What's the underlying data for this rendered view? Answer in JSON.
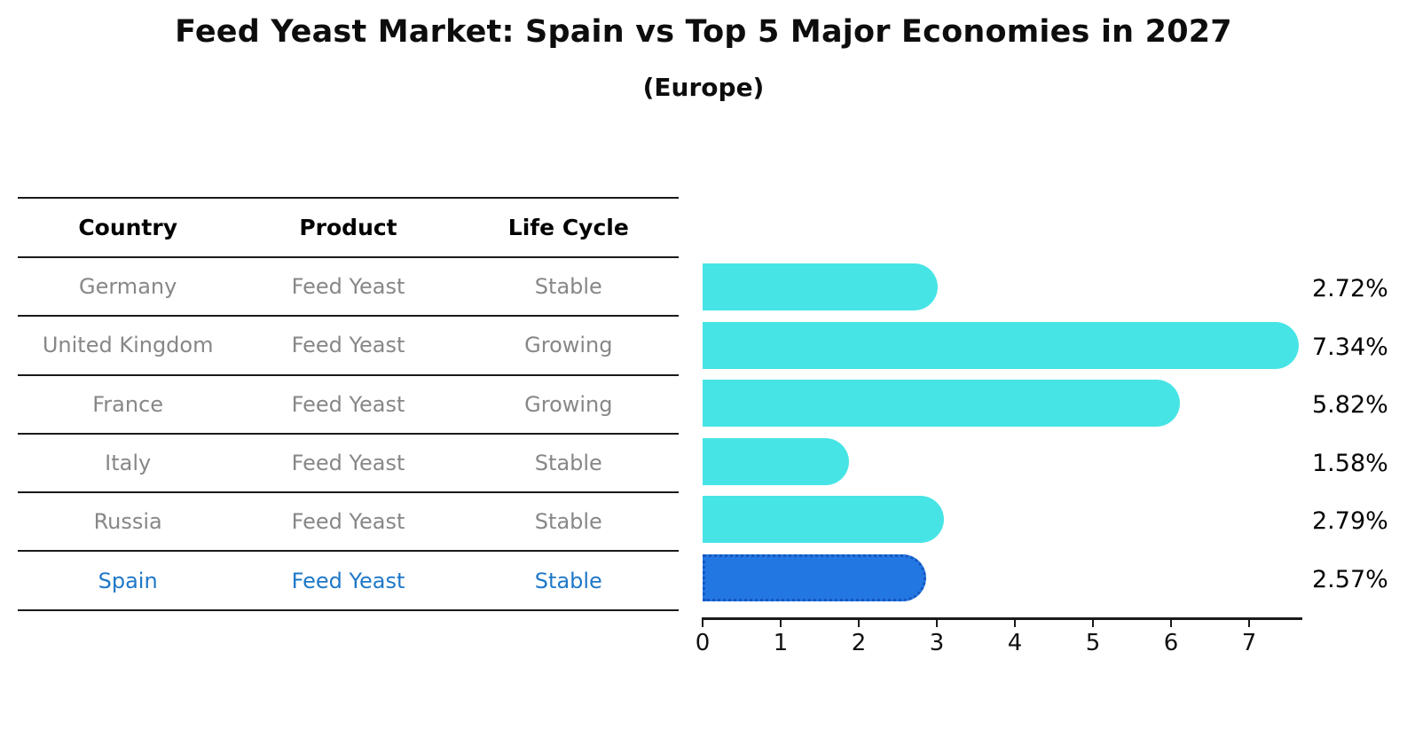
{
  "title": "Feed Yeast Market: Spain vs Top 5 Major Economies in 2027",
  "subtitle": "(Europe)",
  "table": {
    "headers": [
      "Country",
      "Product",
      "Life Cycle"
    ],
    "rows": [
      {
        "country": "Germany",
        "product": "Feed Yeast",
        "life_cycle": "Stable",
        "highlight": false
      },
      {
        "country": "United Kingdom",
        "product": "Feed Yeast",
        "life_cycle": "Growing",
        "highlight": false
      },
      {
        "country": "France",
        "product": "Feed Yeast",
        "life_cycle": "Growing",
        "highlight": false
      },
      {
        "country": "Italy",
        "product": "Feed Yeast",
        "life_cycle": "Stable",
        "highlight": false
      },
      {
        "country": "Russia",
        "product": "Feed Yeast",
        "life_cycle": "Stable",
        "highlight": true
      }
    ],
    "highlight_row": {
      "country": "Spain",
      "product": "Feed Yeast",
      "life_cycle": "Stable"
    }
  },
  "chart_data": {
    "type": "bar",
    "orientation": "horizontal",
    "categories": [
      "Germany",
      "United Kingdom",
      "France",
      "Italy",
      "Russia",
      "Spain"
    ],
    "values": [
      2.72,
      7.34,
      5.82,
      1.58,
      2.79,
      2.57
    ],
    "value_labels": [
      "2.72%",
      "7.34%",
      "5.82%",
      "1.58%",
      "2.79%",
      "2.57%"
    ],
    "xticks": [
      "0",
      "1",
      "2",
      "3",
      "4",
      "5",
      "6",
      "7"
    ],
    "xlim": [
      0,
      7.7
    ],
    "grid": false,
    "legend": false,
    "bar_color": "#47E4E6",
    "highlight_index": 5,
    "highlight_color": "#2377E2",
    "highlight_border_color": "#1557C0",
    "highlight_text_color": "#1E78C8",
    "title": "Feed Yeast Market: Spain vs Top 5 Major Economies in 2027",
    "subtitle": "(Europe)"
  },
  "colors": {
    "table_text": "#878787",
    "header_text": "#000000",
    "rule_line": "#1a1a1a",
    "value_label_text": "#050505"
  }
}
